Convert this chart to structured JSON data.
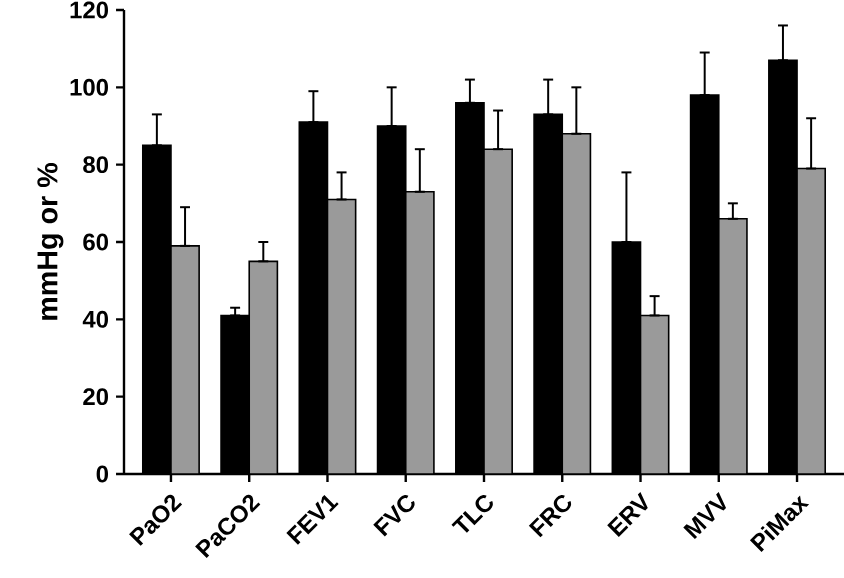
{
  "chart_data": {
    "type": "bar",
    "ylabel": "mmHg or %",
    "categories": [
      "PaO2",
      "PaCO2",
      "FEV1",
      "FVC",
      "TLC",
      "FRC",
      "ERV",
      "MVV",
      "PiMax"
    ],
    "series": [
      {
        "color": "#000000",
        "values": [
          85,
          41,
          91,
          90,
          96,
          93,
          60,
          98,
          107
        ],
        "errors": [
          [
            85,
            93
          ],
          [
            41,
            43
          ],
          [
            91,
            99
          ],
          [
            90,
            100
          ],
          [
            96,
            102
          ],
          [
            93,
            102
          ],
          [
            60,
            78
          ],
          [
            98,
            109
          ],
          [
            107,
            116
          ]
        ]
      },
      {
        "color": "#9a9a9a",
        "values": [
          59,
          55,
          71,
          73,
          84,
          88,
          41,
          66,
          79
        ],
        "errors": [
          [
            59,
            69
          ],
          [
            55,
            60
          ],
          [
            71,
            78
          ],
          [
            73,
            84
          ],
          [
            84,
            94
          ],
          [
            88,
            100
          ],
          [
            41,
            46
          ],
          [
            66,
            70
          ],
          [
            79,
            92
          ]
        ]
      }
    ],
    "ylim": [
      0,
      120
    ],
    "yticks": [
      0,
      20,
      40,
      60,
      80,
      100,
      120
    ],
    "grid": false
  }
}
